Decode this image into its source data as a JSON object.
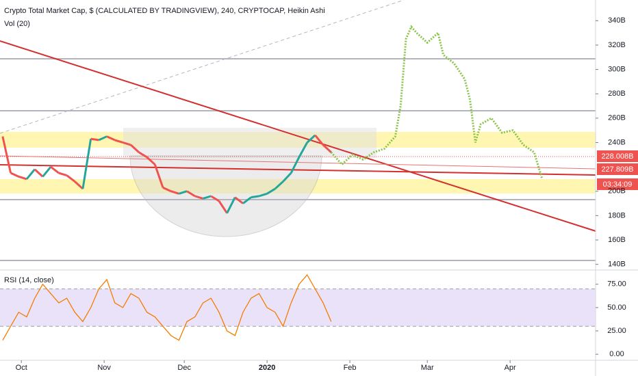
{
  "chart_data": [
    {
      "type": "line",
      "title": "Crypto Total Market Cap, $ (CALCULATED BY TRADINGVIEW), 240, CRYPTOCAP, Heikin Ashi",
      "subtitle": "Vol (20)",
      "up_color": "#26a69a",
      "down_color": "#ef5350",
      "series": [
        {
          "color": "#26a69a",
          "x": [
            -7,
            -4,
            -1,
            2,
            5,
            8,
            11,
            14,
            17,
            20,
            23,
            26,
            29,
            32,
            35,
            38,
            41,
            44,
            47,
            50,
            53,
            56,
            59,
            62,
            65,
            68,
            71,
            74,
            77,
            80,
            83,
            86,
            89,
            92,
            95,
            98,
            101,
            104,
            107,
            110,
            113,
            116
          ],
          "values": [
            245,
            215,
            212,
            210,
            218,
            212,
            220,
            215,
            213,
            208,
            202,
            243,
            242,
            245,
            242,
            240,
            238,
            232,
            228,
            222,
            203,
            200,
            198,
            200,
            196,
            194,
            196,
            192,
            182,
            195,
            190,
            195,
            196,
            198,
            202,
            208,
            215,
            228,
            240,
            246,
            238,
            232
          ]
        },
        {
          "color": "#8bc34a",
          "x": [
            116,
            120,
            124,
            128,
            132,
            136,
            140,
            142,
            144,
            146,
            148,
            152,
            156,
            158,
            162,
            166,
            168,
            170,
            172,
            176,
            180,
            184,
            188,
            192,
            195
          ],
          "values": [
            232,
            222,
            230,
            226,
            232,
            235,
            245,
            270,
            325,
            335,
            330,
            322,
            330,
            312,
            305,
            292,
            275,
            240,
            255,
            260,
            248,
            250,
            238,
            232,
            210
          ]
        }
      ],
      "xlim": [
        -8,
        215
      ],
      "xticks": [
        {
          "value": 0,
          "label": "Oct"
        },
        {
          "value": 31,
          "label": "Nov"
        },
        {
          "value": 61,
          "label": "Dec"
        },
        {
          "value": 92,
          "label": "2020"
        },
        {
          "value": 123,
          "label": "Feb"
        },
        {
          "value": 152,
          "label": "Mar"
        },
        {
          "value": 183,
          "label": "Apr"
        }
      ],
      "ylim": [
        137,
        357
      ],
      "yticks": [
        {
          "value": 140,
          "label": "140B"
        },
        {
          "value": 160,
          "label": "160B"
        },
        {
          "value": 180,
          "label": "180B"
        },
        {
          "value": 200,
          "label": "200B"
        },
        {
          "value": 240,
          "label": "240B"
        },
        {
          "value": 260,
          "label": "260B"
        },
        {
          "value": 280,
          "label": "280B"
        },
        {
          "value": 300,
          "label": "300B"
        },
        {
          "value": 320,
          "label": "320B"
        },
        {
          "value": 340,
          "label": "340B"
        }
      ],
      "price_labels": [
        "228.008B",
        "227.809B",
        "03:34:09"
      ]
    },
    {
      "type": "line",
      "title": "RSI (14, close)",
      "series": [
        {
          "color": "#f57c00",
          "x": [
            -7,
            -4,
            -1,
            2,
            5,
            8,
            11,
            14,
            17,
            20,
            23,
            26,
            29,
            32,
            35,
            38,
            41,
            44,
            47,
            50,
            53,
            56,
            59,
            62,
            65,
            68,
            71,
            74,
            77,
            80,
            83,
            86,
            89,
            92,
            95,
            98,
            101,
            104,
            107,
            110,
            113,
            116
          ],
          "values": [
            15,
            30,
            45,
            40,
            60,
            75,
            65,
            55,
            60,
            45,
            35,
            50,
            70,
            80,
            55,
            50,
            65,
            60,
            45,
            40,
            30,
            20,
            15,
            35,
            40,
            55,
            60,
            45,
            25,
            20,
            45,
            60,
            65,
            50,
            45,
            30,
            55,
            75,
            85,
            70,
            55,
            35
          ]
        }
      ],
      "xlim": [
        -8,
        215
      ],
      "ylim": [
        -5,
        88
      ],
      "band": [
        30,
        70
      ],
      "yticks": [
        {
          "value": 0,
          "label": "0.00"
        },
        {
          "value": 25,
          "label": "25.00"
        },
        {
          "value": 50,
          "label": "50.00"
        },
        {
          "value": 75,
          "label": "75.00"
        }
      ]
    }
  ]
}
